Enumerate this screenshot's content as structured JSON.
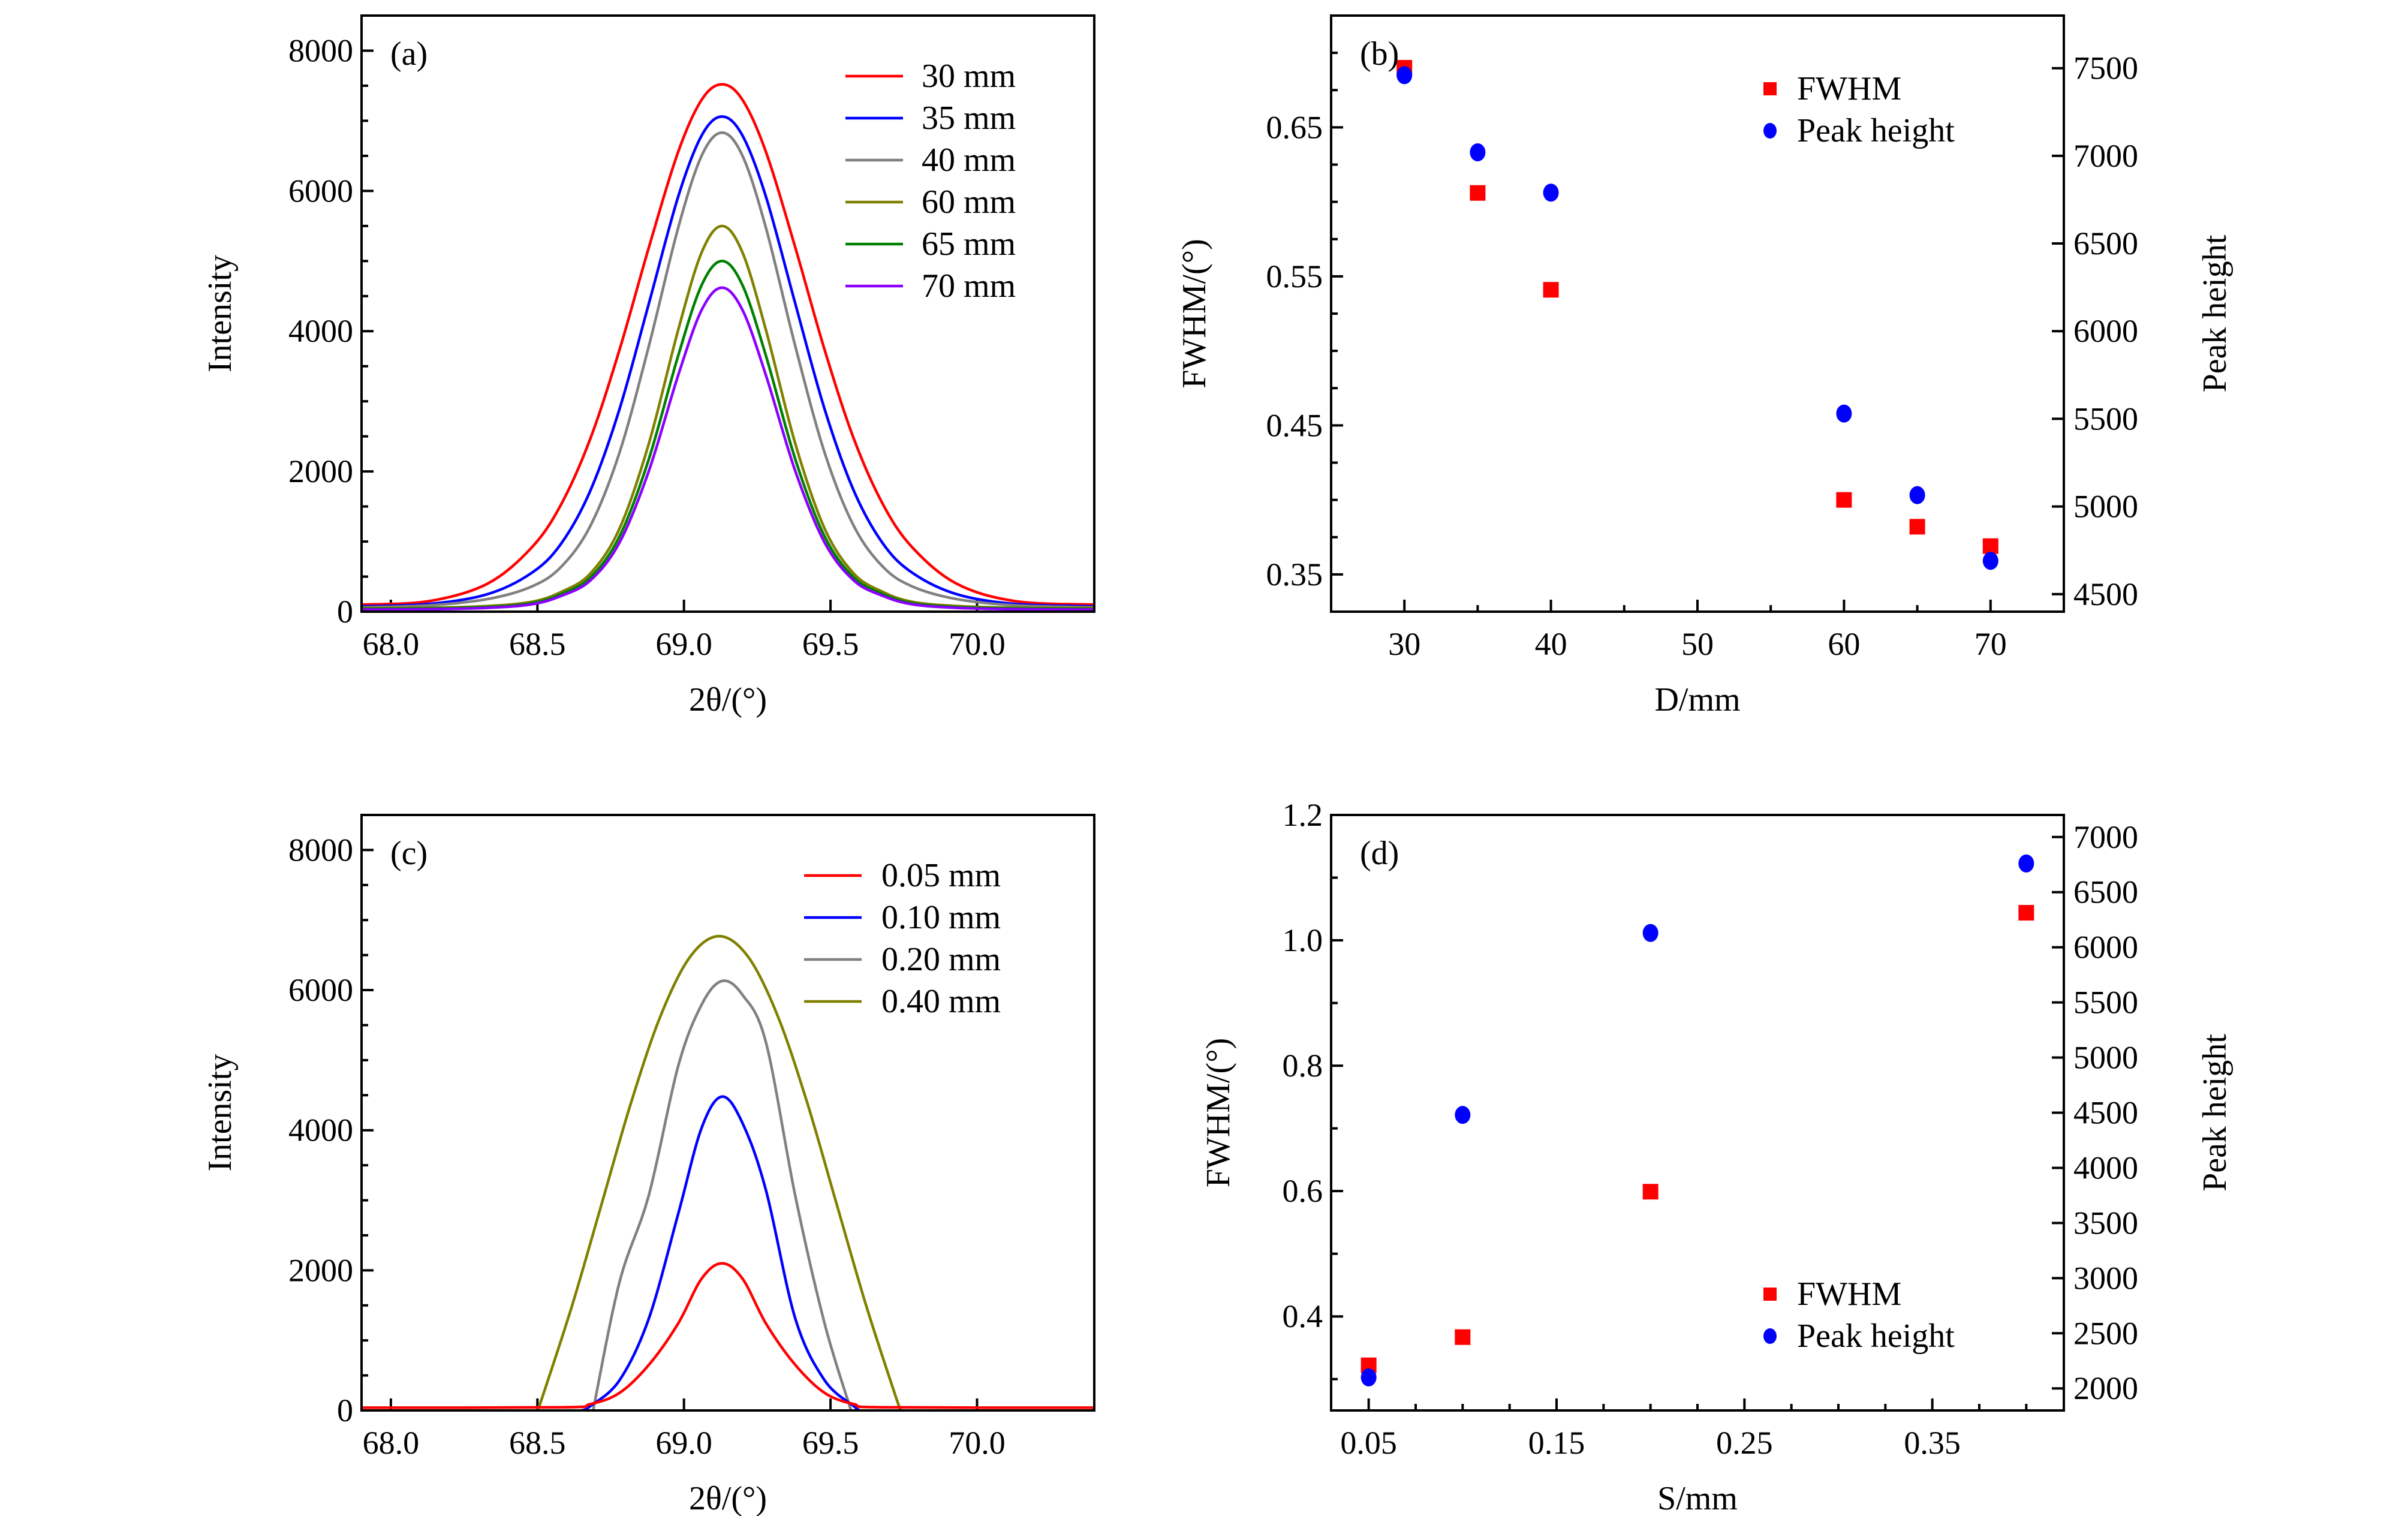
{
  "chart_data": [
    {
      "type": "line",
      "panel_label": "(a)",
      "xlabel": "2θ/(°)",
      "ylabel": "Intensity",
      "xlim": [
        67.9,
        70.4
      ],
      "ylim": [
        0,
        8500
      ],
      "xticks": [
        68.0,
        68.5,
        69.0,
        69.5,
        70.0
      ],
      "xtick_labels": [
        "68.0",
        "68.5",
        "69.0",
        "69.5",
        "70.0"
      ],
      "yticks": [
        0,
        2000,
        4000,
        6000,
        8000
      ],
      "ytick_labels": [
        "0",
        "2000",
        "4000",
        "6000",
        "8000"
      ],
      "yminor_step": 500,
      "legend": "top-right",
      "x": [
        67.9,
        68.13,
        68.33,
        68.48,
        68.58,
        68.68,
        68.78,
        68.88,
        68.98,
        69.06,
        69.13,
        69.2,
        69.28,
        69.38,
        69.48,
        69.58,
        69.68,
        69.78,
        69.93,
        70.13,
        70.4
      ],
      "series": [
        {
          "name": "30 mm",
          "color": "#ff0000",
          "y": [
            100,
            150,
            400,
            913,
            1523,
            2461,
            3733,
            5191,
            6553,
            7297,
            7520,
            7297,
            6553,
            5191,
            3733,
            2461,
            1523,
            913,
            400,
            150,
            100
          ]
        },
        {
          "name": "35 mm",
          "color": "#0000ff",
          "y": [
            75,
            110,
            250,
            552,
            965,
            1720,
            2887,
            4390,
            5914,
            6787,
            7060,
            6787,
            5914,
            4390,
            2887,
            1720,
            965,
            552,
            250,
            110,
            75
          ]
        },
        {
          "name": "40 mm",
          "color": "#808080",
          "y": [
            60,
            90,
            180,
            358,
            635,
            1218,
            2267,
            3784,
            5469,
            6498,
            6830,
            6498,
            5469,
            3784,
            2267,
            1218,
            635,
            358,
            180,
            90,
            60
          ]
        },
        {
          "name": "60 mm",
          "color": "#808000",
          "y": [
            50,
            55,
            80,
            140,
            279,
            541,
            1184,
            2394,
            4012,
            5119,
            5500,
            5119,
            4012,
            2394,
            1184,
            541,
            279,
            140,
            80,
            55,
            50
          ]
        },
        {
          "name": "65 mm",
          "color": "#008000",
          "y": [
            40,
            45,
            65,
            120,
            248,
            486,
            1072,
            2173,
            3646,
            4653,
            5000,
            4653,
            3646,
            2173,
            1072,
            486,
            248,
            120,
            65,
            45,
            40
          ]
        },
        {
          "name": "70 mm",
          "color": "#8b00ff",
          "y": [
            30,
            35,
            55,
            105,
            223,
            443,
            985,
            2004,
            3367,
            4299,
            4620,
            4299,
            3367,
            2004,
            985,
            443,
            223,
            105,
            55,
            35,
            30
          ]
        }
      ]
    },
    {
      "type": "scatter",
      "panel_label": "(b)",
      "xlabel": "D/mm",
      "ylabel_left": "FWHM/(°)",
      "ylabel_right": "Peak height",
      "xlim": [
        25,
        75
      ],
      "ylim_left": [
        0.325,
        0.725
      ],
      "ylim_right": [
        4400,
        7800
      ],
      "xticks": [
        30,
        40,
        50,
        60,
        70
      ],
      "xtick_labels": [
        "30",
        "40",
        "50",
        "60",
        "70"
      ],
      "xminor_step": 5,
      "yticks_left": [
        0.35,
        0.45,
        0.55,
        0.65
      ],
      "ytick_labels_left": [
        "0.35",
        "0.45",
        "0.55",
        "0.65"
      ],
      "yminor_step_left": 0.025,
      "yticks_right": [
        4500,
        5000,
        5500,
        6000,
        6500,
        7000,
        7500
      ],
      "ytick_labels_right": [
        "4500",
        "5000",
        "5500",
        "6000",
        "6500",
        "7000",
        "7500"
      ],
      "legend": "top-right",
      "series": [
        {
          "name": "FWHM",
          "axis": "left",
          "marker": "square",
          "color": "#ff0000",
          "x": [
            30,
            35,
            40,
            60,
            65,
            70
          ],
          "y": [
            0.69,
            0.606,
            0.541,
            0.4,
            0.382,
            0.369
          ]
        },
        {
          "name": "Peak height",
          "axis": "right",
          "marker": "circle",
          "color": "#0000ff",
          "x": [
            30,
            35,
            40,
            60,
            65,
            70
          ],
          "y": [
            7460,
            7020,
            6790,
            5530,
            5065,
            4690
          ]
        }
      ]
    },
    {
      "type": "line",
      "panel_label": "(c)",
      "xlabel": "2θ/(°)",
      "ylabel": "Intensity",
      "xlim": [
        67.9,
        70.4
      ],
      "ylim": [
        0,
        8500
      ],
      "xticks": [
        68.0,
        68.5,
        69.0,
        69.5,
        70.0
      ],
      "xtick_labels": [
        "68.0",
        "68.5",
        "69.0",
        "69.5",
        "70.0"
      ],
      "yticks": [
        0,
        2000,
        4000,
        6000,
        8000
      ],
      "ytick_labels": [
        "0",
        "2000",
        "4000",
        "6000",
        "8000"
      ],
      "yminor_step": 500,
      "legend": "top-right",
      "series": [
        {
          "name": "0.40 mm",
          "color": "#808000",
          "x": [
            68.5,
            68.52,
            68.62,
            68.72,
            68.82,
            68.92,
            69.02,
            69.12,
            69.22,
            69.32,
            69.42,
            69.52,
            69.62,
            69.72,
            69.74
          ],
          "y": [
            0,
            230,
            1520,
            2960,
            4400,
            5630,
            6470,
            6770,
            6470,
            5630,
            4400,
            2960,
            1520,
            230,
            0
          ]
        },
        {
          "name": "0.20 mm",
          "color": "#808080",
          "x": [
            68.69,
            68.78,
            68.88,
            68.98,
            69.06,
            69.13,
            69.2,
            69.28,
            69.38,
            69.48,
            69.57
          ],
          "y": [
            0,
            1830,
            3070,
            4910,
            5790,
            6130,
            5930,
            5250,
            3060,
            1240,
            0
          ]
        },
        {
          "name": "0.10 mm",
          "color": "#0000ff",
          "x": [
            68.65,
            68.68,
            68.78,
            68.88,
            68.98,
            69.06,
            69.13,
            69.2,
            69.28,
            69.38,
            69.48,
            69.58,
            69.6
          ],
          "y": [
            0,
            60,
            430,
            1310,
            2800,
            4030,
            4480,
            4100,
            3140,
            1310,
            430,
            60,
            0
          ]
        },
        {
          "name": "0.05 mm",
          "color": "#ff0000",
          "x": [
            67.9,
            68.58,
            68.68,
            68.78,
            68.88,
            68.98,
            69.06,
            69.13,
            69.2,
            69.28,
            69.38,
            69.48,
            69.58,
            69.68,
            70.4
          ],
          "y": [
            40,
            45,
            90,
            250,
            650,
            1240,
            1880,
            2100,
            1880,
            1240,
            650,
            250,
            90,
            45,
            40
          ]
        }
      ],
      "legend_order": [
        "0.05 mm",
        "0.10 mm",
        "0.20 mm",
        "0.40 mm"
      ]
    },
    {
      "type": "scatter",
      "panel_label": "(d)",
      "xlabel": "S/mm",
      "ylabel_left": "FWHM/(°)",
      "ylabel_right": "Peak height",
      "xlim": [
        0.03,
        0.42
      ],
      "ylim_left": [
        0.25,
        1.2
      ],
      "ylim_right": [
        1800,
        7200
      ],
      "xticks": [
        0.05,
        0.15,
        0.25,
        0.35
      ],
      "xtick_labels": [
        "0.05",
        "0.15",
        "0.25",
        "0.35"
      ],
      "xminor_step": 0.025,
      "yticks_left": [
        0.4,
        0.6,
        0.8,
        1.0,
        1.2
      ],
      "ytick_labels_left": [
        "0.4",
        "0.6",
        "0.8",
        "1.0",
        "1.2"
      ],
      "yminor_step_left": 0.1,
      "yticks_right": [
        2000,
        2500,
        3000,
        3500,
        4000,
        4500,
        5000,
        5500,
        6000,
        6500,
        7000
      ],
      "ytick_labels_right": [
        "2000",
        "2500",
        "3000",
        "3500",
        "4000",
        "4500",
        "5000",
        "5500",
        "6000",
        "6500",
        "7000"
      ],
      "legend": "bottom-right",
      "series": [
        {
          "name": "FWHM",
          "axis": "left",
          "marker": "square",
          "color": "#ff0000",
          "x": [
            0.05,
            0.1,
            0.2,
            0.4
          ],
          "y": [
            0.322,
            0.367,
            0.599,
            1.044
          ]
        },
        {
          "name": "Peak height",
          "axis": "right",
          "marker": "circle",
          "color": "#0000ff",
          "x": [
            0.05,
            0.1,
            0.2,
            0.4
          ],
          "y": [
            2100,
            4480,
            6130,
            6760
          ]
        }
      ]
    }
  ]
}
